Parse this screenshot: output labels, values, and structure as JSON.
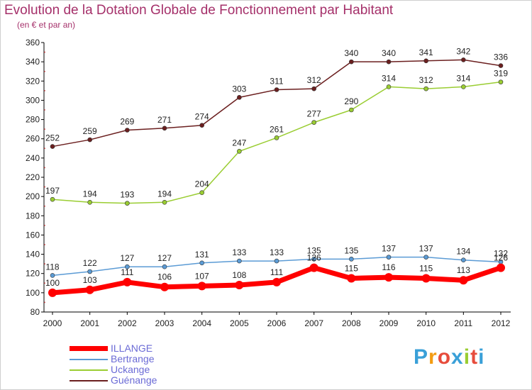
{
  "title": "Evolution de la Dotation Globale de Fonctionnement par Habitant",
  "subtitle": "(en € et par an)",
  "brand": "Proxiti",
  "chart_data": {
    "type": "line",
    "x": [
      "2000",
      "2001",
      "2002",
      "2003",
      "2004",
      "2005",
      "2006",
      "2007",
      "2008",
      "2009",
      "2010",
      "2011",
      "2012"
    ],
    "ylim": [
      80,
      360
    ],
    "yticks": [
      80,
      100,
      120,
      140,
      160,
      180,
      200,
      220,
      240,
      260,
      280,
      300,
      320,
      340,
      360
    ],
    "grid": false,
    "legend_position": "bottom-left",
    "series": [
      {
        "name": "ILLANGE",
        "color": "#ff0000",
        "values": [
          100,
          103,
          111,
          106,
          107,
          108,
          111,
          126,
          115,
          116,
          115,
          113,
          126
        ]
      },
      {
        "name": "Bertrange",
        "color": "#5b9bd5",
        "values": [
          118,
          122,
          127,
          127,
          131,
          133,
          133,
          135,
          135,
          137,
          137,
          134,
          132
        ]
      },
      {
        "name": "Uckange",
        "color": "#9acd32",
        "values": [
          197,
          194,
          193,
          194,
          204,
          247,
          261,
          277,
          290,
          314,
          312,
          314,
          319
        ]
      },
      {
        "name": "Guénange",
        "color": "#6b1f1f",
        "values": [
          252,
          259,
          269,
          271,
          274,
          303,
          311,
          312,
          340,
          340,
          341,
          342,
          336
        ]
      }
    ]
  }
}
